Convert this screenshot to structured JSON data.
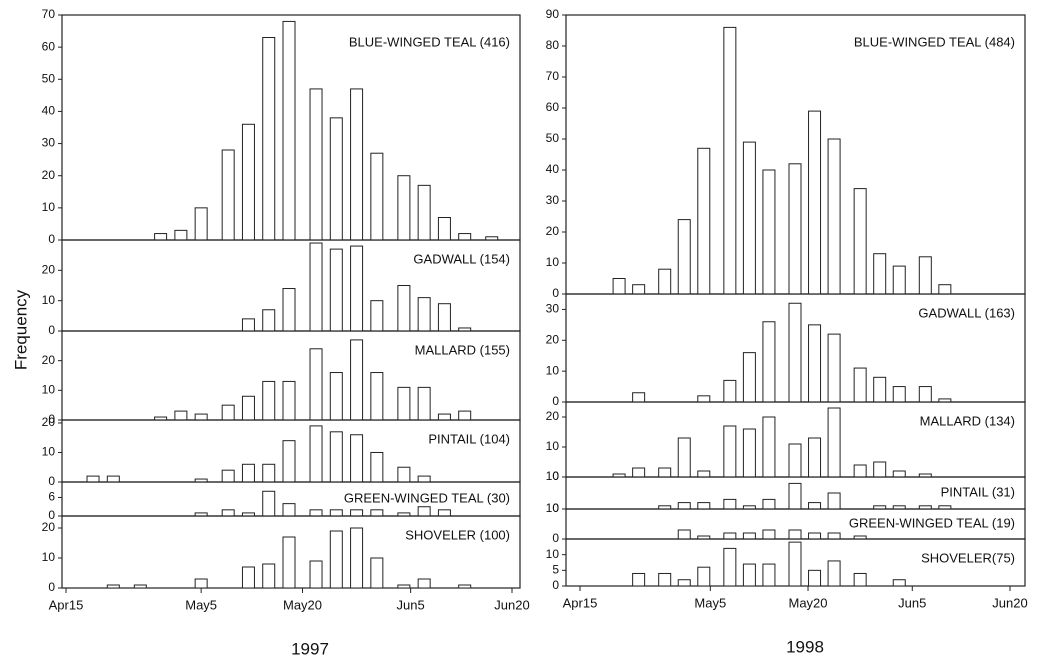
{
  "chart_data": [
    {
      "type": "bar",
      "title": "1997",
      "y_label": "Frequency",
      "x": [
        4,
        7,
        11,
        14,
        17,
        20,
        24,
        27,
        30,
        33,
        37,
        40,
        43,
        46,
        50,
        53,
        56,
        59,
        63
      ],
      "xlim": [
        0,
        66
      ],
      "xticks": [
        {
          "value": 0,
          "label": "Apr15"
        },
        {
          "value": 20,
          "label": "May5"
        },
        {
          "value": 35,
          "label": "May20"
        },
        {
          "value": 51,
          "label": "Jun5"
        },
        {
          "value": 66,
          "label": "Jun20"
        }
      ],
      "color": "#ffffff",
      "series": [
        {
          "name": "BLUE-WINGED TEAL (416)",
          "values": [
            0,
            0,
            0,
            2,
            3,
            10,
            28,
            36,
            63,
            68,
            47,
            38,
            47,
            27,
            20,
            17,
            7,
            2,
            1
          ],
          "ylim": [
            0,
            70
          ],
          "yticks": [
            0,
            10,
            20,
            30,
            40,
            50,
            60,
            70
          ]
        },
        {
          "name": "GADWALL (154)",
          "values": [
            0,
            0,
            0,
            0,
            0,
            0,
            0,
            4,
            7,
            14,
            29,
            27,
            28,
            10,
            15,
            11,
            9,
            1,
            0
          ],
          "ylim": [
            0,
            30
          ],
          "yticks": [
            0,
            10,
            20
          ]
        },
        {
          "name": "MALLARD (155)",
          "values": [
            0,
            0,
            0,
            1,
            3,
            2,
            5,
            8,
            13,
            13,
            24,
            16,
            27,
            16,
            11,
            11,
            2,
            3,
            0
          ],
          "ylim": [
            0,
            30
          ],
          "yticks": [
            0,
            10,
            20
          ]
        },
        {
          "name": "PINTAIL (104)",
          "values": [
            2,
            2,
            0,
            0,
            0,
            1,
            4,
            6,
            6,
            14,
            19,
            17,
            16,
            10,
            5,
            2,
            0,
            0,
            0
          ],
          "ylim": [
            0,
            21
          ],
          "yticks": [
            0,
            10,
            20
          ]
        },
        {
          "name": "GREEN-WINGED TEAL (30)",
          "values": [
            0,
            0,
            0,
            0,
            0,
            1,
            2,
            1,
            8,
            4,
            2,
            2,
            2,
            2,
            1,
            3,
            2,
            0,
            0
          ],
          "ylim": [
            0,
            11
          ],
          "yticks": [
            0,
            6
          ]
        },
        {
          "name": "SHOVELER (100)",
          "values": [
            0,
            1,
            1,
            0,
            0,
            3,
            0,
            7,
            8,
            17,
            9,
            19,
            20,
            10,
            1,
            3,
            0,
            1,
            0
          ],
          "ylim": [
            0,
            24
          ],
          "yticks": [
            0,
            10,
            20
          ]
        }
      ]
    },
    {
      "type": "bar",
      "title": "1998",
      "x": [
        6,
        9,
        13,
        16,
        19,
        23,
        26,
        29,
        33,
        36,
        39,
        43,
        46,
        49,
        53,
        56
      ],
      "xlim": [
        0,
        66
      ],
      "xticks": [
        {
          "value": 0,
          "label": "Apr15"
        },
        {
          "value": 20,
          "label": "May5"
        },
        {
          "value": 35,
          "label": "May20"
        },
        {
          "value": 51,
          "label": "Jun5"
        },
        {
          "value": 66,
          "label": "Jun20"
        }
      ],
      "color": "#ffffff",
      "series": [
        {
          "name": "BLUE-WINGED TEAL (484)",
          "values": [
            5,
            3,
            8,
            24,
            47,
            86,
            49,
            40,
            42,
            59,
            50,
            34,
            13,
            9,
            12,
            3
          ],
          "ylim": [
            0,
            90
          ],
          "yticks": [
            0,
            10,
            20,
            30,
            40,
            50,
            60,
            70,
            80,
            90
          ]
        },
        {
          "name": "GADWALL (163)",
          "values": [
            0,
            3,
            0,
            0,
            2,
            7,
            16,
            26,
            32,
            25,
            22,
            11,
            8,
            5,
            5,
            1
          ],
          "ylim": [
            0,
            35
          ],
          "yticks": [
            0,
            10,
            20,
            30
          ]
        },
        {
          "name": "MALLARD (134)",
          "values": [
            1,
            3,
            3,
            13,
            2,
            17,
            16,
            20,
            11,
            13,
            23,
            4,
            5,
            2,
            1,
            0
          ],
          "ylim": [
            0,
            25
          ],
          "yticks": [
            0,
            10,
            20
          ]
        },
        {
          "name": "PINTAIL (31)",
          "values": [
            0,
            0,
            1,
            2,
            2,
            3,
            1,
            3,
            8,
            2,
            5,
            0,
            1,
            1,
            1,
            1
          ],
          "ylim": [
            0,
            10
          ],
          "yticks": [
            0,
            10
          ]
        },
        {
          "name": "GREEN-WINGED TEAL (19)",
          "values": [
            0,
            0,
            0,
            3,
            1,
            2,
            2,
            3,
            3,
            2,
            2,
            1,
            0,
            0,
            0,
            0
          ],
          "ylim": [
            0,
            10
          ],
          "yticks": [
            0,
            10
          ]
        },
        {
          "name": "SHOVELER(75)",
          "values": [
            0,
            4,
            4,
            2,
            6,
            12,
            7,
            7,
            14,
            5,
            8,
            4,
            0,
            2,
            0,
            0
          ],
          "ylim": [
            0,
            15
          ],
          "yticks": [
            0,
            5,
            10
          ]
        }
      ]
    }
  ]
}
